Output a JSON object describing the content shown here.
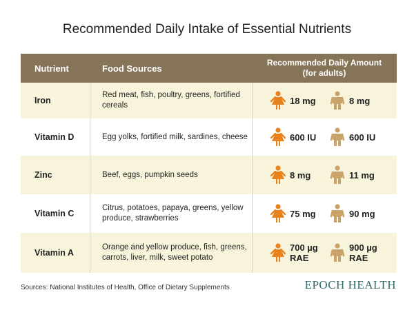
{
  "title": "Recommended Daily Intake of Essential Nutrients",
  "table": {
    "headers": [
      "Nutrient",
      "Food Sources",
      "Recommended Daily Amount",
      "(for adults)"
    ],
    "rows": [
      [
        "Iron",
        "Red meat, fish, poultry, greens, fortified cereals",
        "18 mg",
        "8 mg"
      ],
      [
        "Vitamin D",
        "Egg yolks, fortified milk, sardines, cheese",
        "600 IU",
        "600 IU"
      ],
      [
        "Zinc",
        "Beef, eggs, pumpkin seeds",
        "8 mg",
        "11 mg"
      ],
      [
        "Vitamin C",
        "Citrus, potatoes, papaya, greens, yellow produce, strawberries",
        "75 mg",
        "90 mg"
      ],
      [
        "Vitamin A",
        "Orange and yellow produce, fish, greens, carrots, liver, milk, sweet potato",
        "700 µg RAE",
        "900 µg RAE"
      ]
    ]
  },
  "footer": {
    "source": "Sources: National Institutes of Health, Office of Dietary Supplements",
    "brand": "EPOCH HEALTH"
  }
}
